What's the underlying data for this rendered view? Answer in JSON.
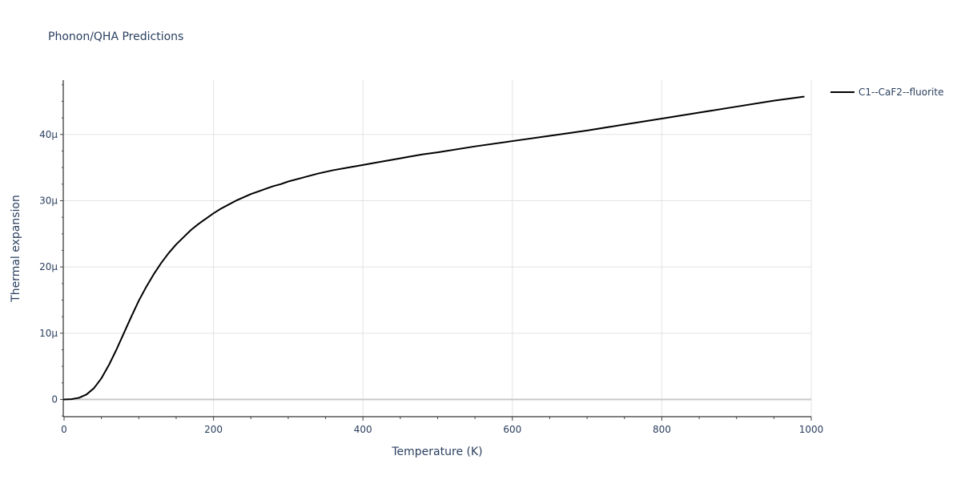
{
  "chart_data": {
    "type": "line",
    "title": "Phonon/QHA Predictions",
    "xlabel": "Temperature (K)",
    "ylabel": "Thermal expansion",
    "xlim": [
      0,
      1000
    ],
    "ylim": [
      -2.6e-06,
      4.82e-05
    ],
    "x_ticks": [
      {
        "value": 0,
        "label": "0"
      },
      {
        "value": 200,
        "label": "200"
      },
      {
        "value": 400,
        "label": "400"
      },
      {
        "value": 600,
        "label": "600"
      },
      {
        "value": 800,
        "label": "800"
      },
      {
        "value": 1000,
        "label": "1000"
      }
    ],
    "y_ticks": [
      {
        "value": 0,
        "label": "0"
      },
      {
        "value": 1e-05,
        "label": "10μ"
      },
      {
        "value": 2e-05,
        "label": "20μ"
      },
      {
        "value": 3e-05,
        "label": "30μ"
      },
      {
        "value": 4e-05,
        "label": "40μ"
      }
    ],
    "grid": true,
    "legend_position": "top-right",
    "series": [
      {
        "name": "C1--CaF2--fluorite",
        "color": "#000000",
        "x": [
          0,
          10,
          20,
          30,
          40,
          50,
          60,
          70,
          80,
          90,
          100,
          110,
          120,
          130,
          140,
          150,
          160,
          170,
          180,
          190,
          200,
          210,
          220,
          230,
          240,
          250,
          260,
          270,
          280,
          290,
          300,
          320,
          340,
          360,
          380,
          400,
          420,
          440,
          460,
          480,
          500,
          550,
          600,
          650,
          700,
          750,
          800,
          850,
          900,
          950,
          990
        ],
        "y": [
          0,
          5e-08,
          2.5e-07,
          7.5e-07,
          1.7e-06,
          3.2e-06,
          5.2e-06,
          7.5e-06,
          1e-05,
          1.25e-05,
          1.49e-05,
          1.7e-05,
          1.89e-05,
          2.06e-05,
          2.21e-05,
          2.34e-05,
          2.45e-05,
          2.56e-05,
          2.65e-05,
          2.73e-05,
          2.81e-05,
          2.88e-05,
          2.94e-05,
          3e-05,
          3.05e-05,
          3.1e-05,
          3.14e-05,
          3.18e-05,
          3.22e-05,
          3.25e-05,
          3.29e-05,
          3.35e-05,
          3.41e-05,
          3.46e-05,
          3.5e-05,
          3.54e-05,
          3.58e-05,
          3.62e-05,
          3.66e-05,
          3.7e-05,
          3.73e-05,
          3.82e-05,
          3.9e-05,
          3.98e-05,
          4.06e-05,
          4.15e-05,
          4.24e-05,
          4.33e-05,
          4.42e-05,
          4.51e-05,
          4.57e-05
        ]
      }
    ]
  }
}
